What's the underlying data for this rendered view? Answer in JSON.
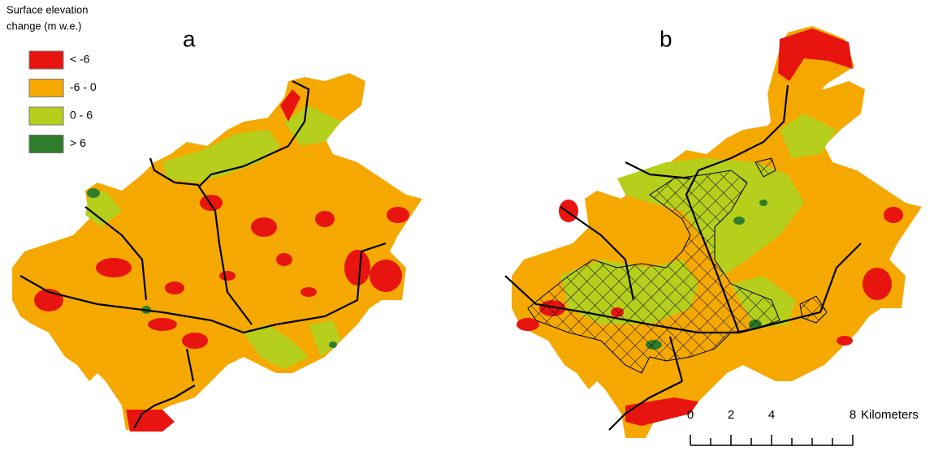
{
  "legend": {
    "title_lines": [
      "Surface elevation",
      "change (m w.e.)"
    ],
    "entries": [
      {
        "label": "< -6",
        "color": "#e8140f"
      },
      {
        "label": "-6 - 0",
        "color": "#f5a900"
      },
      {
        "label": "0 - 6",
        "color": "#b5cf1c"
      },
      {
        "label": "> 6",
        "color": "#2f7d2a"
      }
    ]
  },
  "panels": [
    {
      "label": "a"
    },
    {
      "label": "b"
    }
  ],
  "scale_bar": {
    "ticks": [
      0,
      2,
      4,
      8
    ],
    "unit": "Kilometers"
  }
}
